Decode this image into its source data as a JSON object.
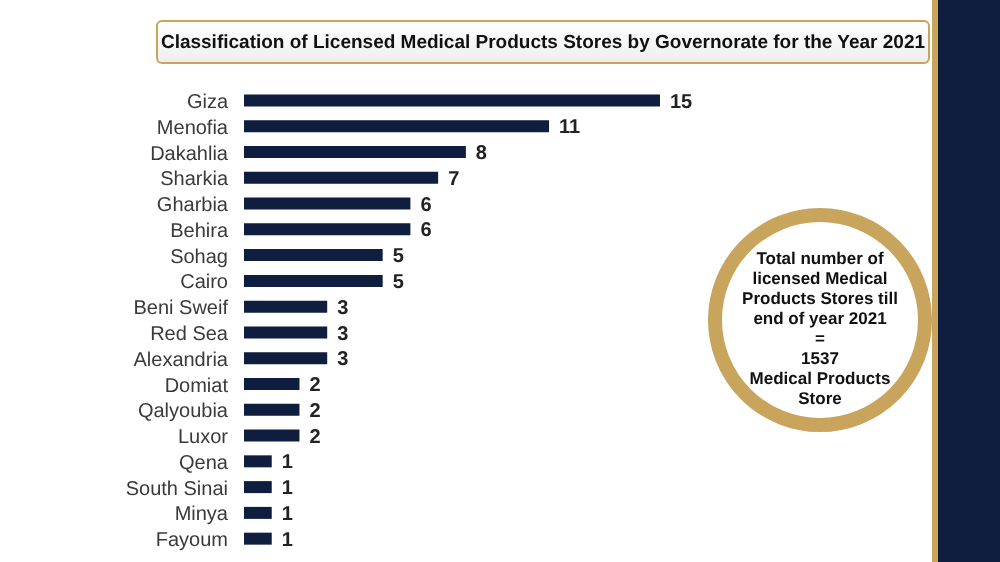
{
  "chart_data": {
    "type": "bar",
    "orientation": "horizontal",
    "title": "Classification of Licensed Medical Products Stores by Governorate for the Year 2021",
    "categories": [
      "Giza",
      "Menofia",
      "Dakahlia",
      "Sharkia",
      "Gharbia",
      "Behira",
      "Sohag",
      "Cairo",
      "Beni Sweif",
      "Red Sea",
      "Alexandria",
      "Domiat",
      "Qalyoubia",
      "Luxor",
      "Qena",
      "South Sinai",
      "Minya",
      "Fayoum"
    ],
    "values": [
      15,
      11,
      8,
      7,
      6,
      6,
      5,
      5,
      3,
      3,
      3,
      2,
      2,
      2,
      1,
      1,
      1,
      1
    ],
    "color": "#0f1d3f",
    "data_labels": true,
    "annotations": [
      "Total number of licensed Medical Products Stores till end of year 2021",
      "=",
      "1537",
      "Medical Products Store"
    ]
  }
}
